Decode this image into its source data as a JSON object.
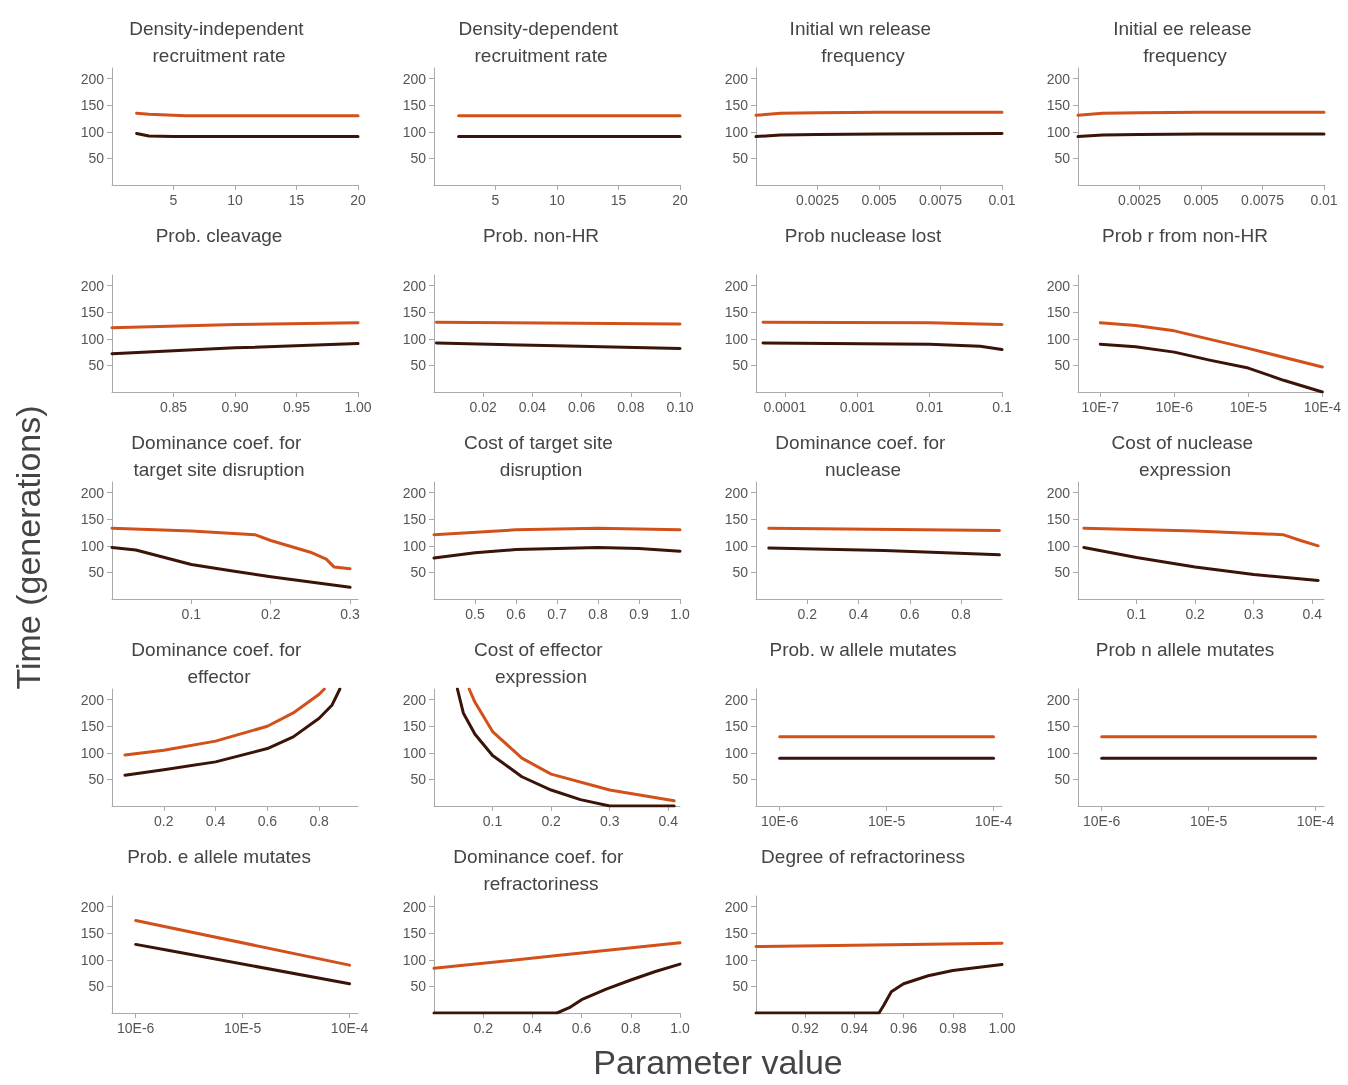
{
  "chart_data": [
    {
      "type": "line",
      "title": "Density-independent recruitment rate",
      "xlim": [
        0,
        20
      ],
      "xticks": [
        5,
        10,
        15,
        20
      ],
      "ylim": [
        0,
        220
      ],
      "yticks": [
        50,
        100,
        150,
        200
      ],
      "grid": false,
      "marker": "none",
      "line_style": "solid",
      "series": [
        {
          "color": "#d2501a",
          "x": [
            2,
            3,
            5,
            6,
            20
          ],
          "values": [
            135,
            133,
            131,
            130,
            130
          ]
        },
        {
          "color": "#3a1408",
          "x": [
            2,
            3,
            5,
            20
          ],
          "values": [
            97,
            92,
            91,
            91
          ]
        }
      ]
    },
    {
      "type": "line",
      "title": "Density-dependent recruitment rate",
      "xlim": [
        0,
        20
      ],
      "xticks": [
        5,
        10,
        15,
        20
      ],
      "ylim": [
        0,
        220
      ],
      "yticks": [
        50,
        100,
        150,
        200
      ],
      "grid": false,
      "marker": "none",
      "line_style": "solid",
      "series": [
        {
          "color": "#d2501a",
          "x": [
            2,
            20
          ],
          "values": [
            130,
            130
          ]
        },
        {
          "color": "#3a1408",
          "x": [
            2,
            20
          ],
          "values": [
            91,
            91
          ]
        }
      ]
    },
    {
      "type": "line",
      "title": "Initial wn release frequency",
      "xlim": [
        0,
        0.01
      ],
      "xticks": [
        0.0025,
        0.005,
        0.0075,
        0.01
      ],
      "ylim": [
        0,
        220
      ],
      "yticks": [
        50,
        100,
        150,
        200
      ],
      "grid": false,
      "marker": "none",
      "line_style": "solid",
      "series": [
        {
          "color": "#d2501a",
          "x": [
            0,
            0.001,
            0.0025,
            0.005,
            0.01
          ],
          "values": [
            131,
            135,
            136,
            137,
            137
          ]
        },
        {
          "color": "#3a1408",
          "x": [
            0,
            0.001,
            0.0025,
            0.005,
            0.01
          ],
          "values": [
            91,
            94,
            95,
            96,
            97
          ]
        }
      ]
    },
    {
      "type": "line",
      "title": "Initial ee release frequency",
      "xlim": [
        0,
        0.01
      ],
      "xticks": [
        0.0025,
        0.005,
        0.0075,
        0.01
      ],
      "ylim": [
        0,
        220
      ],
      "yticks": [
        50,
        100,
        150,
        200
      ],
      "grid": false,
      "marker": "none",
      "line_style": "solid",
      "series": [
        {
          "color": "#d2501a",
          "x": [
            0,
            0.001,
            0.0025,
            0.005,
            0.01
          ],
          "values": [
            131,
            135,
            136,
            137,
            137
          ]
        },
        {
          "color": "#3a1408",
          "x": [
            0,
            0.001,
            0.0025,
            0.005,
            0.01
          ],
          "values": [
            91,
            94,
            95,
            96,
            96
          ]
        }
      ]
    },
    {
      "type": "line",
      "title": "Prob. cleavage",
      "xlim": [
        0.8,
        1.0
      ],
      "xticks": [
        0.85,
        {
          "value": 0.9,
          "label": "0.90"
        },
        0.95,
        {
          "value": 1,
          "label": "1.00"
        }
      ],
      "ylim": [
        0,
        220
      ],
      "yticks": [
        50,
        100,
        150,
        200
      ],
      "grid": false,
      "marker": "none",
      "line_style": "solid",
      "series": [
        {
          "color": "#d2501a",
          "x": [
            0.8,
            0.9,
            1.0
          ],
          "values": [
            121,
            127,
            130
          ]
        },
        {
          "color": "#3a1408",
          "x": [
            0.8,
            0.9,
            1.0
          ],
          "values": [
            72,
            83,
            91
          ]
        }
      ]
    },
    {
      "type": "line",
      "title": "Prob. non-HR",
      "xlim": [
        0,
        0.1
      ],
      "xticks": [
        0.02,
        0.04,
        0.06,
        0.08,
        {
          "value": 0.1,
          "label": "0.10"
        }
      ],
      "ylim": [
        0,
        220
      ],
      "yticks": [
        50,
        100,
        150,
        200
      ],
      "grid": false,
      "marker": "none",
      "line_style": "solid",
      "series": [
        {
          "color": "#d2501a",
          "x": [
            0.001,
            0.1
          ],
          "values": [
            131,
            128
          ]
        },
        {
          "color": "#3a1408",
          "x": [
            0.001,
            0.05,
            0.1
          ],
          "values": [
            92,
            87,
            82
          ]
        }
      ]
    },
    {
      "type": "line",
      "title": "Prob nuclease lost",
      "log": "x",
      "xlim": [
        4e-05,
        0.1
      ],
      "xticks": [
        0.0001,
        0.001,
        0.01,
        0.1
      ],
      "ylim": [
        0,
        220
      ],
      "yticks": [
        50,
        100,
        150,
        200
      ],
      "grid": false,
      "marker": "none",
      "line_style": "solid",
      "series": [
        {
          "color": "#d2501a",
          "x": [
            5e-05,
            0.01,
            0.05,
            0.1
          ],
          "values": [
            131,
            130,
            128,
            127
          ]
        },
        {
          "color": "#3a1408",
          "x": [
            5e-05,
            0.01,
            0.05,
            0.1
          ],
          "values": [
            92,
            90,
            86,
            80
          ]
        }
      ]
    },
    {
      "type": "line",
      "title": "Prob r from non-HR",
      "log": "x",
      "xlim": [
        5e-07,
        0.001
      ],
      "xticks": [
        {
          "value": 1e-06,
          "label": "10E-7"
        },
        {
          "value": 1e-05,
          "label": "10E-6"
        },
        {
          "value": 0.0001,
          "label": "10E-5"
        },
        {
          "value": 0.001,
          "label": "10E-4"
        }
      ],
      "ylim": [
        0,
        220
      ],
      "yticks": [
        50,
        100,
        150,
        200
      ],
      "grid": false,
      "marker": "none",
      "line_style": "solid",
      "series": [
        {
          "color": "#d2501a",
          "x": [
            1e-06,
            3e-06,
            1e-05,
            0.0001,
            0.001
          ],
          "values": [
            130,
            125,
            115,
            82,
            47
          ]
        },
        {
          "color": "#3a1408",
          "x": [
            1e-06,
            3e-06,
            1e-05,
            3e-05,
            0.0001,
            0.0003,
            0.001
          ],
          "values": [
            90,
            85,
            75,
            60,
            45,
            22,
            0
          ]
        }
      ]
    },
    {
      "type": "line",
      "title": "Dominance coef. for target site disruption",
      "ylabel": "Time (generations)",
      "xlim": [
        0,
        0.31
      ],
      "xticks": [
        0.1,
        0.2,
        0.3
      ],
      "ylim": [
        0,
        220
      ],
      "yticks": [
        50,
        100,
        150,
        200
      ],
      "grid": false,
      "marker": "none",
      "line_style": "solid",
      "series": [
        {
          "color": "#d2501a",
          "x": [
            0,
            0.1,
            0.18,
            0.2,
            0.25,
            0.27,
            0.28,
            0.3
          ],
          "values": [
            133,
            128,
            121,
            110,
            88,
            75,
            60,
            57
          ]
        },
        {
          "color": "#3a1408",
          "x": [
            0,
            0.03,
            0.1,
            0.15,
            0.2,
            0.3
          ],
          "values": [
            97,
            92,
            65,
            53,
            42,
            22
          ]
        }
      ]
    },
    {
      "type": "line",
      "title": "Cost of target site disruption",
      "xlim": [
        0.4,
        1.0
      ],
      "xticks": [
        0.5,
        0.6,
        0.7,
        0.8,
        0.9,
        {
          "value": 1,
          "label": "1.0"
        }
      ],
      "ylim": [
        0,
        220
      ],
      "yticks": [
        50,
        100,
        150,
        200
      ],
      "grid": false,
      "marker": "none",
      "line_style": "solid",
      "series": [
        {
          "color": "#d2501a",
          "x": [
            0.4,
            0.6,
            0.8,
            1.0
          ],
          "values": [
            121,
            130,
            133,
            130
          ]
        },
        {
          "color": "#3a1408",
          "x": [
            0.4,
            0.5,
            0.6,
            0.8,
            0.9,
            1.0
          ],
          "values": [
            77,
            87,
            93,
            97,
            95,
            90
          ]
        }
      ]
    },
    {
      "type": "line",
      "title": "Dominance coef. for nuclease",
      "xlim": [
        0,
        0.96
      ],
      "xticks": [
        0.2,
        0.4,
        0.6,
        0.8
      ],
      "ylim": [
        0,
        220
      ],
      "yticks": [
        50,
        100,
        150,
        200
      ],
      "grid": false,
      "marker": "none",
      "line_style": "solid",
      "series": [
        {
          "color": "#d2501a",
          "x": [
            0.05,
            0.95
          ],
          "values": [
            133,
            129
          ]
        },
        {
          "color": "#3a1408",
          "x": [
            0.05,
            0.5,
            0.95
          ],
          "values": [
            96,
            91,
            83
          ]
        }
      ]
    },
    {
      "type": "line",
      "title": "Cost of nuclease expression",
      "xlim": [
        0,
        0.42
      ],
      "xticks": [
        0.1,
        0.2,
        0.3,
        0.4
      ],
      "ylim": [
        0,
        220
      ],
      "yticks": [
        50,
        100,
        150,
        200
      ],
      "grid": false,
      "marker": "none",
      "line_style": "solid",
      "series": [
        {
          "color": "#d2501a",
          "x": [
            0.01,
            0.2,
            0.35,
            0.38,
            0.41
          ],
          "values": [
            133,
            128,
            121,
            110,
            100
          ]
        },
        {
          "color": "#3a1408",
          "x": [
            0.01,
            0.1,
            0.2,
            0.3,
            0.41
          ],
          "values": [
            97,
            78,
            60,
            46,
            35
          ]
        }
      ]
    },
    {
      "type": "line",
      "title": "Dominance coef. for effector",
      "xlim": [
        0,
        0.95
      ],
      "xticks": [
        0.2,
        0.4,
        0.6,
        0.8
      ],
      "ylim": [
        0,
        220
      ],
      "yticks": [
        50,
        100,
        150,
        200
      ],
      "grid": false,
      "marker": "none",
      "line_style": "solid",
      "series": [
        {
          "color": "#d2501a",
          "x": [
            0.05,
            0.2,
            0.4,
            0.6,
            0.7,
            0.8,
            0.82
          ],
          "values": [
            96,
            105,
            122,
            150,
            175,
            210,
            220
          ]
        },
        {
          "color": "#3a1408",
          "x": [
            0.05,
            0.2,
            0.4,
            0.6,
            0.7,
            0.8,
            0.85,
            0.88
          ],
          "values": [
            58,
            68,
            83,
            108,
            130,
            165,
            190,
            220
          ]
        }
      ]
    },
    {
      "type": "line",
      "title": "Cost of effector expression",
      "xlim": [
        0,
        0.42
      ],
      "xticks": [
        0.1,
        0.2,
        0.3,
        0.4
      ],
      "ylim": [
        0,
        220
      ],
      "yticks": [
        50,
        100,
        150,
        200
      ],
      "grid": false,
      "marker": "none",
      "line_style": "solid",
      "series": [
        {
          "color": "#d2501a",
          "x": [
            0.06,
            0.07,
            0.1,
            0.15,
            0.2,
            0.3,
            0.41
          ],
          "values": [
            220,
            195,
            140,
            90,
            60,
            30,
            10
          ]
        },
        {
          "color": "#3a1408",
          "x": [
            0.04,
            0.05,
            0.07,
            0.1,
            0.15,
            0.2,
            0.25,
            0.3,
            0.41
          ],
          "values": [
            220,
            175,
            135,
            95,
            55,
            30,
            12,
            0,
            0
          ]
        }
      ]
    },
    {
      "type": "line",
      "title": "Prob. w allele mutates",
      "log": "x",
      "xlim": [
        6e-06,
        0.0012
      ],
      "xticks": [
        {
          "value": 1e-05,
          "label": "10E-6"
        },
        {
          "value": 0.0001,
          "label": "10E-5"
        },
        {
          "value": 0.001,
          "label": "10E-4"
        }
      ],
      "ylim": [
        0,
        220
      ],
      "yticks": [
        50,
        100,
        150,
        200
      ],
      "grid": false,
      "marker": "none",
      "line_style": "solid",
      "series": [
        {
          "color": "#d2501a",
          "x": [
            1e-05,
            0.001
          ],
          "values": [
            130,
            130
          ]
        },
        {
          "color": "#3a1408",
          "x": [
            1e-05,
            0.001
          ],
          "values": [
            90,
            90
          ]
        }
      ]
    },
    {
      "type": "line",
      "title": "Prob n allele mutates",
      "log": "x",
      "xlim": [
        6e-06,
        0.0012
      ],
      "xticks": [
        {
          "value": 1e-05,
          "label": "10E-6"
        },
        {
          "value": 0.0001,
          "label": "10E-5"
        },
        {
          "value": 0.001,
          "label": "10E-4"
        }
      ],
      "ylim": [
        0,
        220
      ],
      "yticks": [
        50,
        100,
        150,
        200
      ],
      "grid": false,
      "marker": "none",
      "line_style": "solid",
      "series": [
        {
          "color": "#d2501a",
          "x": [
            1e-05,
            0.001
          ],
          "values": [
            130,
            130
          ]
        },
        {
          "color": "#3a1408",
          "x": [
            1e-05,
            0.001
          ],
          "values": [
            90,
            90
          ]
        }
      ]
    },
    {
      "type": "line",
      "title": "Prob. e allele mutates",
      "log": "x",
      "xlim": [
        6e-06,
        0.0012
      ],
      "xticks": [
        {
          "value": 1e-05,
          "label": "10E-6"
        },
        {
          "value": 0.0001,
          "label": "10E-5"
        },
        {
          "value": 0.001,
          "label": "10E-4"
        }
      ],
      "ylim": [
        0,
        220
      ],
      "yticks": [
        50,
        100,
        150,
        200
      ],
      "grid": false,
      "marker": "none",
      "line_style": "solid",
      "series": [
        {
          "color": "#d2501a",
          "x": [
            1e-05,
            0.001
          ],
          "values": [
            174,
            90
          ]
        },
        {
          "color": "#3a1408",
          "x": [
            1e-05,
            2e-05,
            0.001
          ],
          "values": [
            129,
            118,
            55
          ]
        }
      ]
    },
    {
      "type": "line",
      "title": "Dominance coef. for refractoriness",
      "xlabel": "Parameter value",
      "xlim": [
        0,
        1.0
      ],
      "xticks": [
        0.2,
        0.4,
        0.6,
        0.8,
        {
          "value": 1,
          "label": "1.0"
        }
      ],
      "ylim": [
        0,
        220
      ],
      "yticks": [
        50,
        100,
        150,
        200
      ],
      "grid": false,
      "marker": "none",
      "line_style": "solid",
      "series": [
        {
          "color": "#d2501a",
          "x": [
            0,
            0.5,
            1.0
          ],
          "values": [
            84,
            108,
            132
          ]
        },
        {
          "color": "#3a1408",
          "x": [
            0,
            0.5,
            0.55,
            0.6,
            0.7,
            0.8,
            0.9,
            1.0
          ],
          "values": [
            0,
            0,
            10,
            25,
            45,
            62,
            78,
            92
          ]
        }
      ]
    },
    {
      "type": "line",
      "title": "Degree of refractoriness",
      "xlim": [
        0.9,
        1.0
      ],
      "xticks": [
        0.92,
        0.94,
        0.96,
        0.98,
        {
          "value": 1,
          "label": "1.00"
        }
      ],
      "ylim": [
        0,
        220
      ],
      "yticks": [
        50,
        100,
        150,
        200
      ],
      "grid": false,
      "marker": "none",
      "line_style": "solid",
      "series": [
        {
          "color": "#d2501a",
          "x": [
            0.9,
            1.0
          ],
          "values": [
            125,
            131
          ]
        },
        {
          "color": "#3a1408",
          "x": [
            0.9,
            0.95,
            0.952,
            0.955,
            0.96,
            0.97,
            0.98,
            1.0
          ],
          "values": [
            0,
            0,
            15,
            40,
            55,
            70,
            80,
            91
          ]
        }
      ]
    }
  ]
}
